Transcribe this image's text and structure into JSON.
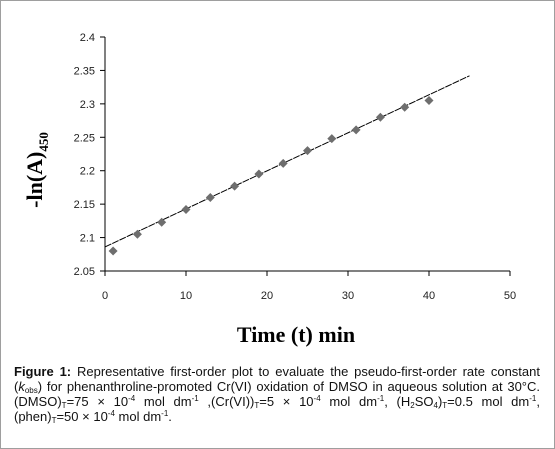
{
  "chart_data": {
    "type": "scatter",
    "xlabel": "Time (t) min",
    "ylabel_main": "-ln(A)",
    "ylabel_sub": "450",
    "xlim": [
      0,
      50
    ],
    "ylim": [
      2.05,
      2.4
    ],
    "xticks": [
      "0",
      "10",
      "20",
      "30",
      "40",
      "50"
    ],
    "yticks": [
      "2.05",
      "2.1",
      "2.15",
      "2.2",
      "2.25",
      "2.3",
      "2.35",
      "2.4"
    ],
    "grid": false,
    "legend": "none",
    "marker_color": "#6e6e6e",
    "line_color": "#000000",
    "points": [
      {
        "x": 1,
        "y": 2.08
      },
      {
        "x": 4,
        "y": 2.105
      },
      {
        "x": 7,
        "y": 2.123
      },
      {
        "x": 10,
        "y": 2.142
      },
      {
        "x": 13,
        "y": 2.16
      },
      {
        "x": 16,
        "y": 2.177
      },
      {
        "x": 19,
        "y": 2.195
      },
      {
        "x": 22,
        "y": 2.211
      },
      {
        "x": 25,
        "y": 2.23
      },
      {
        "x": 28,
        "y": 2.248
      },
      {
        "x": 31,
        "y": 2.261
      },
      {
        "x": 34,
        "y": 2.28
      },
      {
        "x": 37,
        "y": 2.295
      },
      {
        "x": 40,
        "y": 2.305
      }
    ],
    "trendline": {
      "x": [
        0,
        45
      ],
      "y": [
        2.086,
        2.342
      ]
    }
  },
  "caption": {
    "label": "Figure 1:",
    "text_a": " Representative first-order plot to evaluate the pseudo-first-order rate constant (",
    "k": "k",
    "k_sub": "obs",
    "text_b": ") for phenanthroline-promoted Cr(VI) oxidation of DMSO in aqueous solution at 30°C. (DMSO)",
    "sub_t1": "T",
    "text_c": "=75 × 10",
    "sup_1": "-4",
    "text_d": " mol dm",
    "sup_2": "-1",
    "text_e": " ,(Cr(VI))",
    "sub_t2": "T",
    "text_f": "=5 × 10",
    "sup_3": "-4",
    "text_g": " mol dm",
    "sup_4": "-1",
    "text_h": ", (H",
    "sub_2": "2",
    "text_i": "SO",
    "sub_4": "4",
    "text_j": ")",
    "sub_t3": "T",
    "text_k": "=0.5 mol dm",
    "sup_5": "-1",
    "text_l": ", (phen)",
    "sub_t4": "T",
    "text_m": "=50 × 10",
    "sup_6": "-4",
    "text_n": " mol dm",
    "sup_7": "-1",
    "text_o": "."
  }
}
